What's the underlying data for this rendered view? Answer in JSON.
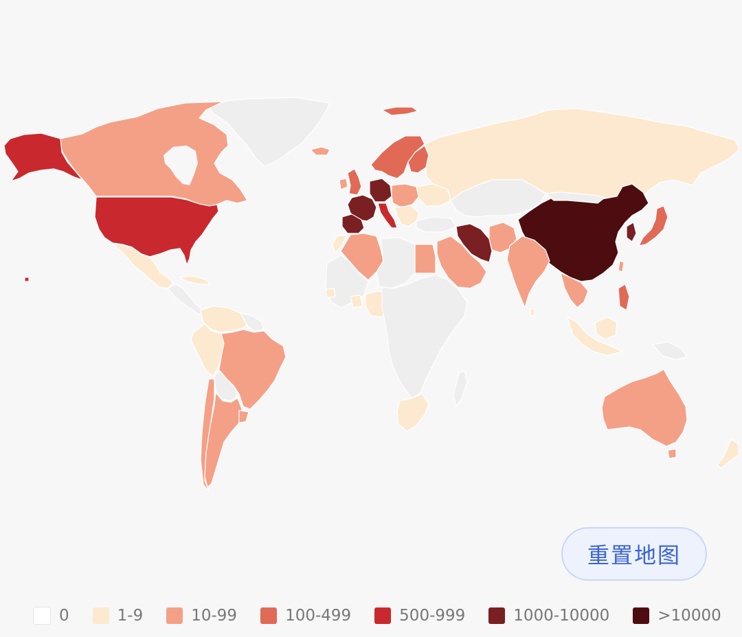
{
  "map": {
    "levels": [
      {
        "key": "0",
        "color": "#ffffff"
      },
      {
        "key": "1",
        "color": "#fde9cf"
      },
      {
        "key": "2",
        "color": "#f4a086"
      },
      {
        "key": "3",
        "color": "#e16a56"
      },
      {
        "key": "4",
        "color": "#c9292e"
      },
      {
        "key": "5",
        "color": "#7a1f22"
      },
      {
        "key": "6",
        "color": "#4d0c0f"
      }
    ],
    "nodata_color": "#eeeeee"
  },
  "reset_button": {
    "label": "重置地图"
  },
  "legend": {
    "items": [
      {
        "label": "0",
        "color": "#ffffff"
      },
      {
        "label": "1-9",
        "color": "#fde9cf"
      },
      {
        "label": "10-99",
        "color": "#f4a086"
      },
      {
        "label": "100-499",
        "color": "#e16a56"
      },
      {
        "label": "500-999",
        "color": "#c9292e"
      },
      {
        "label": "1000-10000",
        "color": "#7a1f22"
      },
      {
        "label": ">10000",
        "color": "#4d0c0f"
      }
    ]
  }
}
